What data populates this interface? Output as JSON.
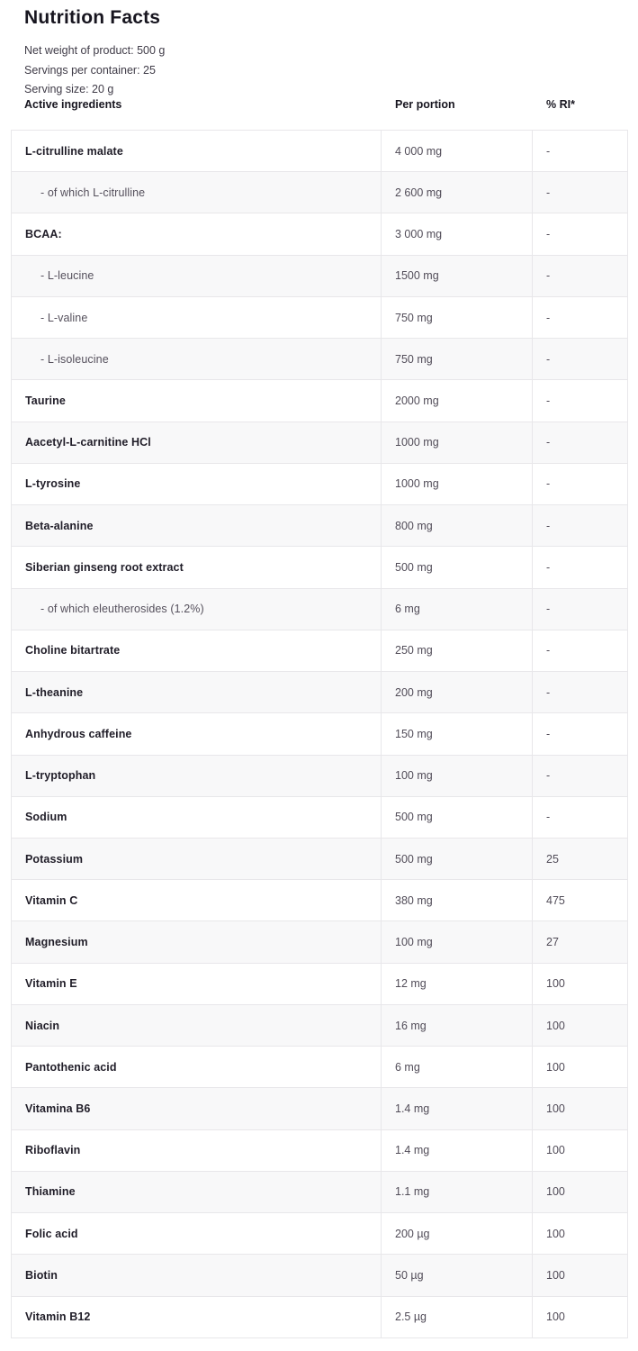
{
  "title": "Nutrition Facts",
  "meta": {
    "net_weight": "Net weight of product: 500 g",
    "servings_per_container": "Servings per container: 25",
    "serving_size": "Serving size: 20 g"
  },
  "colors": {
    "text_dark": "#17151f",
    "text_muted": "#514c58",
    "stripe": "#f8f8f9",
    "border": "#e8e7ea"
  },
  "table": {
    "columns": [
      "Active ingredients",
      "Per portion",
      "% RI*"
    ],
    "rows": [
      {
        "ingredient": "L-citrulline malate",
        "per_portion": "4 000 mg",
        "ri": "-",
        "indent": false
      },
      {
        "ingredient": "- of which L-citrulline",
        "per_portion": "2 600 mg",
        "ri": "-",
        "indent": true
      },
      {
        "ingredient": "BCAA:",
        "per_portion": "3 000 mg",
        "ri": "-",
        "indent": false
      },
      {
        "ingredient": "- L-leucine",
        "per_portion": "1500 mg",
        "ri": "-",
        "indent": true
      },
      {
        "ingredient": "- L-valine",
        "per_portion": "750 mg",
        "ri": "-",
        "indent": true
      },
      {
        "ingredient": "- L-isoleucine",
        "per_portion": "750 mg",
        "ri": "-",
        "indent": true
      },
      {
        "ingredient": "Taurine",
        "per_portion": "2000 mg",
        "ri": "-",
        "indent": false
      },
      {
        "ingredient": "Aacetyl-L-carnitine HCl",
        "per_portion": "1000 mg",
        "ri": "-",
        "indent": false
      },
      {
        "ingredient": "L-tyrosine",
        "per_portion": "1000 mg",
        "ri": "-",
        "indent": false
      },
      {
        "ingredient": "Beta-alanine",
        "per_portion": "800 mg",
        "ri": "-",
        "indent": false
      },
      {
        "ingredient": "Siberian ginseng root extract",
        "per_portion": "500 mg",
        "ri": "-",
        "indent": false
      },
      {
        "ingredient": "- of which eleutherosides (1.2%)",
        "per_portion": "6 mg",
        "ri": "-",
        "indent": true
      },
      {
        "ingredient": "Choline bitartrate",
        "per_portion": "250 mg",
        "ri": "-",
        "indent": false
      },
      {
        "ingredient": "L-theanine",
        "per_portion": "200 mg",
        "ri": "-",
        "indent": false
      },
      {
        "ingredient": "Anhydrous caffeine",
        "per_portion": "150 mg",
        "ri": "-",
        "indent": false
      },
      {
        "ingredient": "L-tryptophan",
        "per_portion": "100 mg",
        "ri": "-",
        "indent": false
      },
      {
        "ingredient": "Sodium",
        "per_portion": "500 mg",
        "ri": "-",
        "indent": false
      },
      {
        "ingredient": "Potassium",
        "per_portion": "500 mg",
        "ri": "25",
        "indent": false
      },
      {
        "ingredient": "Vitamin C",
        "per_portion": "380 mg",
        "ri": "475",
        "indent": false
      },
      {
        "ingredient": "Magnesium",
        "per_portion": "100 mg",
        "ri": "27",
        "indent": false
      },
      {
        "ingredient": "Vitamin E",
        "per_portion": "12 mg",
        "ri": "100",
        "indent": false
      },
      {
        "ingredient": "Niacin",
        "per_portion": "16 mg",
        "ri": "100",
        "indent": false
      },
      {
        "ingredient": "Pantothenic acid",
        "per_portion": "6 mg",
        "ri": "100",
        "indent": false
      },
      {
        "ingredient": "Vitamina B6",
        "per_portion": "1.4 mg",
        "ri": "100",
        "indent": false
      },
      {
        "ingredient": "Riboflavin",
        "per_portion": "1.4 mg",
        "ri": "100",
        "indent": false
      },
      {
        "ingredient": "Thiamine",
        "per_portion": "1.1 mg",
        "ri": "100",
        "indent": false
      },
      {
        "ingredient": "Folic acid",
        "per_portion": "200 µg",
        "ri": "100",
        "indent": false
      },
      {
        "ingredient": "Biotin",
        "per_portion": "50 µg",
        "ri": "100",
        "indent": false
      },
      {
        "ingredient": "Vitamin B12",
        "per_portion": "2.5 µg",
        "ri": "100",
        "indent": false
      }
    ]
  }
}
